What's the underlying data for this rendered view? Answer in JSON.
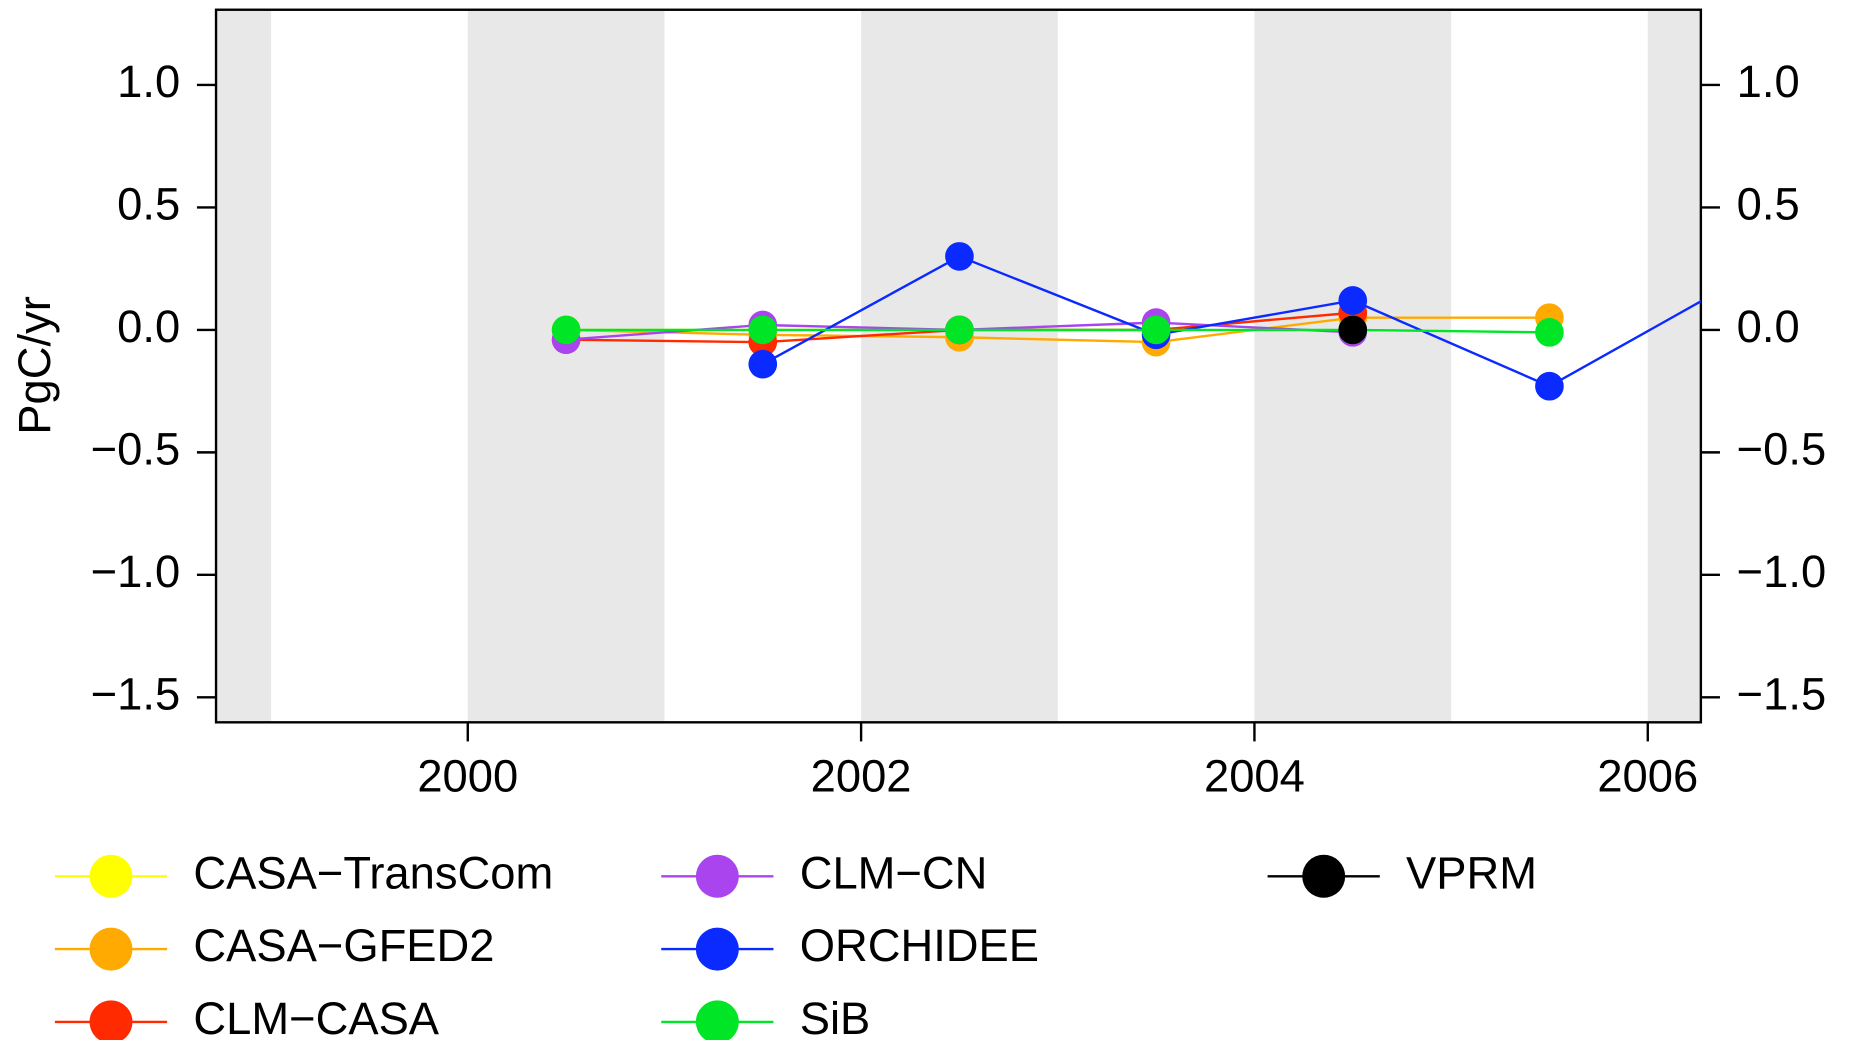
{
  "chart_data": {
    "type": "line",
    "y_label": "PgC/yr",
    "x": [
      2000.5,
      2001.5,
      2002.5,
      2003.5,
      2004.5,
      2005.5,
      2006.5
    ],
    "xlim": [
      1998.72,
      2006.27
    ],
    "xticks": [
      2000,
      2002,
      2004,
      2006
    ],
    "ylim": [
      -1.602,
      1.307
    ],
    "yticks": [
      {
        "value": -1.5,
        "label": "−1.5"
      },
      {
        "value": -1.0,
        "label": "−1.0"
      },
      {
        "value": -0.5,
        "label": "−0.5"
      },
      {
        "value": 0.0,
        "label": "0.0"
      },
      0.5,
      {
        "value": 1.0,
        "label": "1.0"
      }
    ],
    "shaded_bands": true,
    "series": [
      {
        "name": "CASA−TransCom",
        "color": "#ffff00",
        "values": [
          0.0,
          0.0,
          0.0,
          0.0,
          null,
          null,
          null
        ]
      },
      {
        "name": "CASA−GFED2",
        "color": "#ffaa00",
        "values": [
          0.0,
          -0.02,
          -0.03,
          -0.05,
          0.05,
          0.05,
          null
        ]
      },
      {
        "name": "CLM−CASA",
        "color": "#ff2a00",
        "values": [
          -0.04,
          -0.05,
          0.0,
          0.0,
          0.07,
          null,
          null
        ]
      },
      {
        "name": "CLM−CN",
        "color": "#aa44ee",
        "values": [
          -0.04,
          0.02,
          0.0,
          0.03,
          -0.01,
          null,
          null
        ]
      },
      {
        "name": "ORCHIDEE",
        "color": "#0a2aff",
        "values": [
          null,
          -0.14,
          0.3,
          -0.02,
          0.12,
          -0.23,
          0.22
        ]
      },
      {
        "name": "SiB",
        "color": "#00e626",
        "values": [
          0.0,
          0.0,
          0.0,
          0.0,
          0.0,
          -0.01,
          null
        ]
      },
      {
        "name": "VPRM",
        "color": "#000000",
        "values": [
          null,
          null,
          null,
          null,
          0.0,
          null,
          null
        ]
      }
    ]
  }
}
